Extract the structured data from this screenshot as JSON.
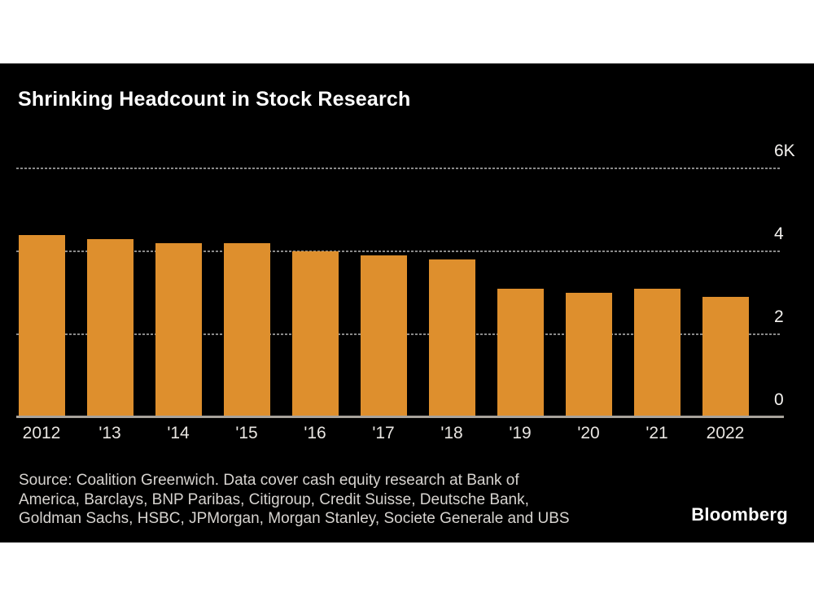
{
  "page": {
    "background": "#ffffff",
    "panel_background": "#000000"
  },
  "chart_data": {
    "type": "bar",
    "title": "Shrinking Headcount in Stock Research",
    "categories": [
      "2012",
      "'13",
      "'14",
      "'15",
      "'16",
      "'17",
      "'18",
      "'19",
      "'20",
      "'21",
      "2022"
    ],
    "values": [
      4400,
      4300,
      4200,
      4200,
      4000,
      3900,
      3800,
      3100,
      3000,
      3100,
      2900
    ],
    "xlabel": "",
    "ylabel": "",
    "ylim": [
      0,
      6000
    ],
    "yticks": [
      {
        "value": 6000,
        "label": "6K"
      },
      {
        "value": 4000,
        "label": "4"
      },
      {
        "value": 2000,
        "label": "2"
      },
      {
        "value": 0,
        "label": "0"
      }
    ],
    "grid": "horizontal-dashed",
    "legend": "none",
    "bar_color": "#DE8F2D",
    "gridline_color": "#8A8A8A",
    "axis_line_color": "#A7A29B"
  },
  "footer": {
    "source_lines": [
      "Source: Coalition Greenwich. Data cover cash equity research at Bank of",
      "America, Barclays, BNP Paribas, Citigroup, Credit Suisse, Deutsche Bank,",
      "Goldman Sachs, HSBC, JPMorgan, Morgan Stanley, Societe Generale and UBS"
    ],
    "brand": "Bloomberg"
  }
}
